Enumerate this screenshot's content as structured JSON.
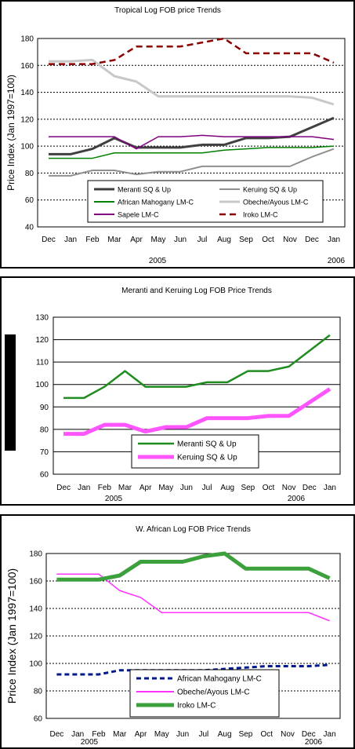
{
  "chart_data": [
    {
      "type": "line",
      "title": "Tropical Log FOB price Trends",
      "ylabel": "Price Index (Jan 1997=100)",
      "xlabel": "",
      "categories": [
        "Dec",
        "Jan",
        "Feb",
        "Mar",
        "Apr",
        "May",
        "Jun",
        "Jul",
        "Aug",
        "Sep",
        "Oct",
        "Nov",
        "Dec",
        "Jan"
      ],
      "year_labels": [
        "2005",
        "2006"
      ],
      "ylim": [
        40,
        180
      ],
      "yticks": [
        40,
        60,
        80,
        100,
        120,
        140,
        160,
        180
      ],
      "grid": true,
      "legend": "bottom-center",
      "series": [
        {
          "name": "Meranti SQ & Up",
          "color": "#404040",
          "values": [
            94,
            94,
            98,
            106,
            99,
            99,
            99,
            101,
            101,
            106,
            106,
            107,
            114,
            121
          ]
        },
        {
          "name": "Keruing SQ & Up",
          "color": "#909090",
          "values": [
            78,
            78,
            82,
            82,
            79,
            81,
            81,
            85,
            85,
            85,
            85,
            85,
            92,
            98
          ]
        },
        {
          "name": "African Mahogany LM-C",
          "color": "#008000",
          "values": [
            91,
            91,
            91,
            95,
            95,
            95,
            95,
            95,
            97,
            98,
            99,
            99,
            99,
            100
          ]
        },
        {
          "name": "Obeche/Ayous LM-C",
          "color": "#c8c8c8",
          "values": [
            163,
            163,
            164,
            152,
            148,
            137,
            137,
            137,
            137,
            137,
            137,
            137,
            136,
            131
          ]
        },
        {
          "name": "Sapele LM-C",
          "color": "#800080",
          "values": [
            107,
            107,
            107,
            107,
            98,
            107,
            107,
            108,
            107,
            107,
            107,
            107,
            107,
            105
          ]
        },
        {
          "name": "Iroko LM-C",
          "color": "#8b0000",
          "values": [
            161,
            161,
            161,
            164,
            174,
            174,
            174,
            177,
            180,
            169,
            169,
            169,
            169,
            162
          ]
        }
      ]
    },
    {
      "type": "line",
      "title": "Meranti and Keruing Log FOB Price Trends",
      "ylabel": "",
      "xlabel": "",
      "categories": [
        "Dec",
        "Jan",
        "Feb",
        "Mar",
        "Apr",
        "May",
        "Jun",
        "Jul",
        "Aug",
        "Sep",
        "Oct",
        "Nov",
        "Dec",
        "Jan"
      ],
      "year_labels": [
        "2005",
        "2006"
      ],
      "ylim": [
        60,
        130
      ],
      "yticks": [
        60,
        70,
        80,
        90,
        100,
        110,
        120,
        130
      ],
      "grid": true,
      "legend": "bottom-center",
      "series": [
        {
          "name": "Meranti SQ & Up",
          "color": "#1e8c1e",
          "values": [
            94,
            94,
            99,
            106,
            99,
            99,
            99,
            101,
            101,
            106,
            106,
            108,
            115,
            122
          ]
        },
        {
          "name": "Keruing SQ & Up",
          "color": "#ff55ff",
          "values": [
            78,
            78,
            82,
            82,
            79,
            81,
            81,
            85,
            85,
            85,
            86,
            86,
            92,
            98
          ]
        }
      ]
    },
    {
      "type": "line",
      "title": "W. African Log FOB Price Trends",
      "ylabel": "Price Index (Jan 1997=100)",
      "xlabel": "",
      "categories": [
        "Dec",
        "Jan",
        "Feb",
        "Mar",
        "Apr",
        "May",
        "Jun",
        "Jul",
        "Aug",
        "Sep",
        "Oct",
        "Nov",
        "Dec",
        "Jan"
      ],
      "year_labels": [
        "2005",
        "2006"
      ],
      "ylim": [
        60,
        180
      ],
      "yticks": [
        60,
        80,
        100,
        120,
        140,
        160,
        180
      ],
      "grid": true,
      "legend": "bottom-center",
      "series": [
        {
          "name": "African Mahogany LM-C",
          "color": "#001a8c",
          "values": [
            92,
            92,
            92,
            95,
            95,
            95,
            95,
            95,
            96,
            97,
            98,
            98,
            98,
            99
          ]
        },
        {
          "name": "Obeche/Ayous LM-C",
          "color": "#ff33ff",
          "values": [
            165,
            165,
            165,
            153,
            148,
            137,
            137,
            137,
            137,
            137,
            137,
            137,
            137,
            131
          ]
        },
        {
          "name": "Iroko LM-C",
          "color": "#3ca03c",
          "values": [
            161,
            161,
            161,
            164,
            174,
            174,
            174,
            178,
            180,
            169,
            169,
            169,
            169,
            162
          ]
        }
      ]
    }
  ]
}
